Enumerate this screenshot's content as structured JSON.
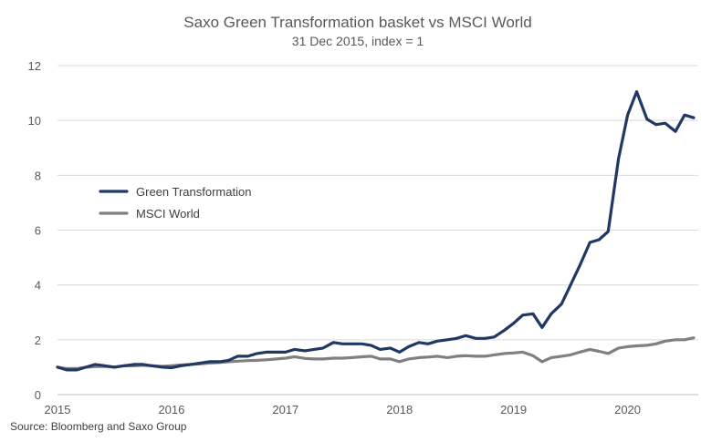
{
  "chart_data": {
    "type": "line",
    "title": "Saxo Green Transformation basket vs MSCI World",
    "subtitle": "31 Dec 2015, index = 1",
    "xlabel": "",
    "ylabel": "",
    "xlim": [
      2015,
      2020.62
    ],
    "ylim": [
      0,
      12
    ],
    "x_ticks": [
      "2015",
      "2016",
      "2017",
      "2018",
      "2019",
      "2020"
    ],
    "y_ticks": [
      "0",
      "2",
      "4",
      "6",
      "8",
      "10",
      "12"
    ],
    "grid": "horizontal",
    "legend_position": "left-middle",
    "source": "Source: Bloomberg and Saxo Group",
    "series": [
      {
        "name": "Green Transformation",
        "color": "#1f3864",
        "x": [
          2015.0,
          2015.08,
          2015.17,
          2015.25,
          2015.33,
          2015.42,
          2015.5,
          2015.58,
          2015.67,
          2015.75,
          2015.83,
          2015.92,
          2016.0,
          2016.08,
          2016.17,
          2016.25,
          2016.33,
          2016.42,
          2016.5,
          2016.58,
          2016.67,
          2016.75,
          2016.83,
          2016.92,
          2017.0,
          2017.08,
          2017.17,
          2017.25,
          2017.33,
          2017.42,
          2017.5,
          2017.58,
          2017.67,
          2017.75,
          2017.83,
          2017.92,
          2018.0,
          2018.08,
          2018.17,
          2018.25,
          2018.33,
          2018.42,
          2018.5,
          2018.58,
          2018.67,
          2018.75,
          2018.83,
          2018.92,
          2019.0,
          2019.08,
          2019.17,
          2019.25,
          2019.33,
          2019.42,
          2019.5,
          2019.58,
          2019.67,
          2019.75,
          2019.83,
          2019.92,
          2020.0,
          2020.08,
          2020.17,
          2020.25,
          2020.33,
          2020.42,
          2020.5,
          2020.58
        ],
        "values": [
          1.0,
          0.9,
          0.9,
          1.0,
          1.1,
          1.05,
          1.0,
          1.05,
          1.1,
          1.1,
          1.05,
          1.0,
          0.98,
          1.05,
          1.1,
          1.15,
          1.2,
          1.2,
          1.25,
          1.4,
          1.4,
          1.5,
          1.55,
          1.55,
          1.55,
          1.65,
          1.6,
          1.65,
          1.7,
          1.9,
          1.85,
          1.85,
          1.85,
          1.8,
          1.65,
          1.7,
          1.55,
          1.75,
          1.9,
          1.85,
          1.95,
          2.0,
          2.05,
          2.15,
          2.05,
          2.05,
          2.1,
          2.35,
          2.6,
          2.9,
          2.95,
          2.45,
          2.95,
          3.3,
          4.0,
          4.7,
          5.55,
          5.65,
          5.95,
          8.6,
          10.2,
          11.05,
          10.05,
          9.85,
          9.9,
          9.6,
          10.2,
          10.1
        ]
      },
      {
        "name": "MSCI World",
        "color": "#808080",
        "x": [
          2015.0,
          2015.08,
          2015.17,
          2015.25,
          2015.33,
          2015.42,
          2015.5,
          2015.58,
          2015.67,
          2015.75,
          2015.83,
          2015.92,
          2016.0,
          2016.08,
          2016.17,
          2016.25,
          2016.33,
          2016.42,
          2016.5,
          2016.58,
          2016.67,
          2016.75,
          2016.83,
          2016.92,
          2017.0,
          2017.08,
          2017.17,
          2017.25,
          2017.33,
          2017.42,
          2017.5,
          2017.58,
          2017.67,
          2017.75,
          2017.83,
          2017.92,
          2018.0,
          2018.08,
          2018.17,
          2018.25,
          2018.33,
          2018.42,
          2018.5,
          2018.58,
          2018.67,
          2018.75,
          2018.83,
          2018.92,
          2019.0,
          2019.08,
          2019.17,
          2019.25,
          2019.33,
          2019.42,
          2019.5,
          2019.58,
          2019.67,
          2019.75,
          2019.83,
          2019.92,
          2020.0,
          2020.08,
          2020.17,
          2020.25,
          2020.33,
          2020.42,
          2020.5,
          2020.58
        ],
        "values": [
          1.0,
          0.95,
          0.95,
          1.0,
          1.02,
          1.03,
          1.0,
          1.05,
          1.05,
          1.07,
          1.05,
          1.03,
          1.05,
          1.08,
          1.1,
          1.12,
          1.15,
          1.17,
          1.2,
          1.22,
          1.24,
          1.25,
          1.27,
          1.3,
          1.33,
          1.38,
          1.32,
          1.3,
          1.3,
          1.33,
          1.33,
          1.35,
          1.38,
          1.4,
          1.3,
          1.3,
          1.2,
          1.3,
          1.35,
          1.37,
          1.4,
          1.35,
          1.4,
          1.42,
          1.4,
          1.4,
          1.45,
          1.5,
          1.52,
          1.55,
          1.42,
          1.2,
          1.35,
          1.4,
          1.45,
          1.55,
          1.65,
          1.58,
          1.5,
          1.7,
          1.75,
          1.78,
          1.8,
          1.85,
          1.95,
          2.0,
          2.0,
          2.07
        ]
      }
    ]
  }
}
